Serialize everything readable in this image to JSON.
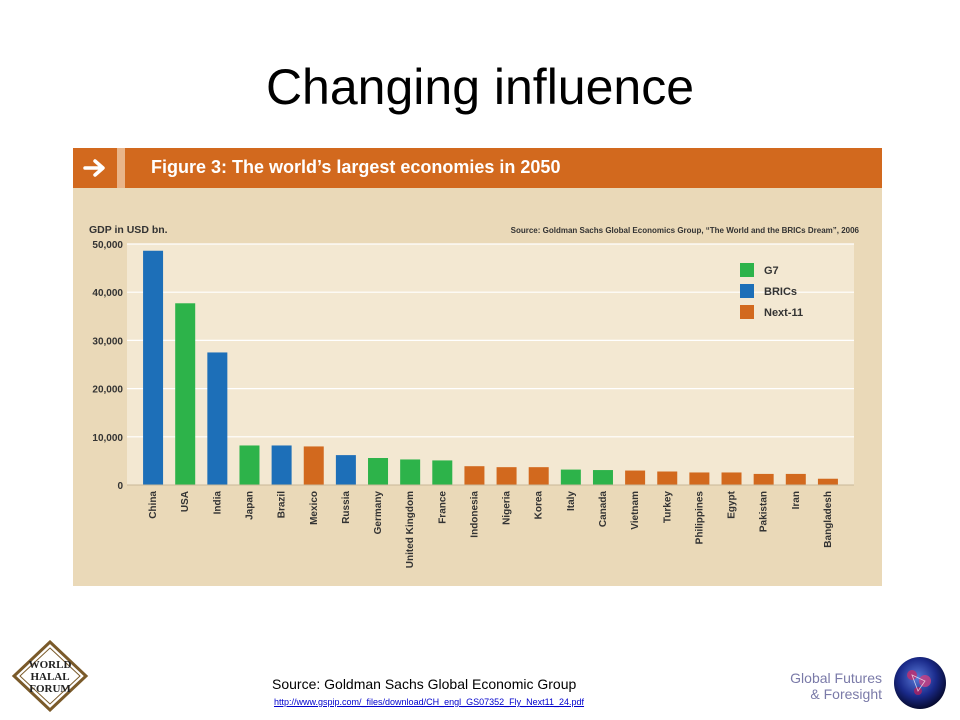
{
  "slide": {
    "title": "Changing influence",
    "footer_source": "Source: Goldman Sachs Global Economic Group",
    "footer_url": "http://www.gspip.com/_files/download/CH_engl_GS07352_Fly_Next11_24.pdf",
    "org_line1": "Global Futures",
    "org_line2": "& Foresight",
    "logo_left_text": [
      "WORLD",
      "HALAL",
      "FORUM"
    ]
  },
  "figure": {
    "title": "Figure 3: The world’s largest economies in 2050",
    "source": "Source: Goldman Sachs Global Economics Group, “The World and the BRICs Dream”, 2006",
    "icon": "arrow-right-icon",
    "header_color": "#d2691e",
    "panel_color": "#ead9b8"
  },
  "chart_data": {
    "type": "bar",
    "ylabel": "GDP in USD bn.",
    "ylim": [
      0,
      50000
    ],
    "yticks": [
      0,
      10000,
      20000,
      30000,
      40000,
      50000
    ],
    "ytick_labels": [
      "0",
      "10,000",
      "20,000",
      "30,000",
      "40,000",
      "50,000"
    ],
    "grid": true,
    "legend_position": "top-right",
    "legend": [
      {
        "name": "G7",
        "color": "#2db34a"
      },
      {
        "name": "BRICs",
        "color": "#1d6fb8"
      },
      {
        "name": "Next-11",
        "color": "#d2691e"
      }
    ],
    "categories": [
      "China",
      "USA",
      "India",
      "Japan",
      "Brazil",
      "Mexico",
      "Russia",
      "Germany",
      "United Kingdom",
      "France",
      "Indonesia",
      "Nigeria",
      "Korea",
      "Italy",
      "Canada",
      "Vietnam",
      "Turkey",
      "Philippines",
      "Egypt",
      "Pakistan",
      "Iran",
      "Bangladesh"
    ],
    "values": [
      48600,
      37700,
      27500,
      8200,
      8200,
      8000,
      6200,
      5600,
      5300,
      5100,
      3900,
      3700,
      3700,
      3200,
      3100,
      3000,
      2800,
      2600,
      2600,
      2300,
      2300,
      1300
    ],
    "groups": [
      "BRICs",
      "G7",
      "BRICs",
      "G7",
      "BRICs",
      "Next-11",
      "BRICs",
      "G7",
      "G7",
      "G7",
      "Next-11",
      "Next-11",
      "Next-11",
      "G7",
      "G7",
      "Next-11",
      "Next-11",
      "Next-11",
      "Next-11",
      "Next-11",
      "Next-11",
      "Next-11"
    ]
  }
}
